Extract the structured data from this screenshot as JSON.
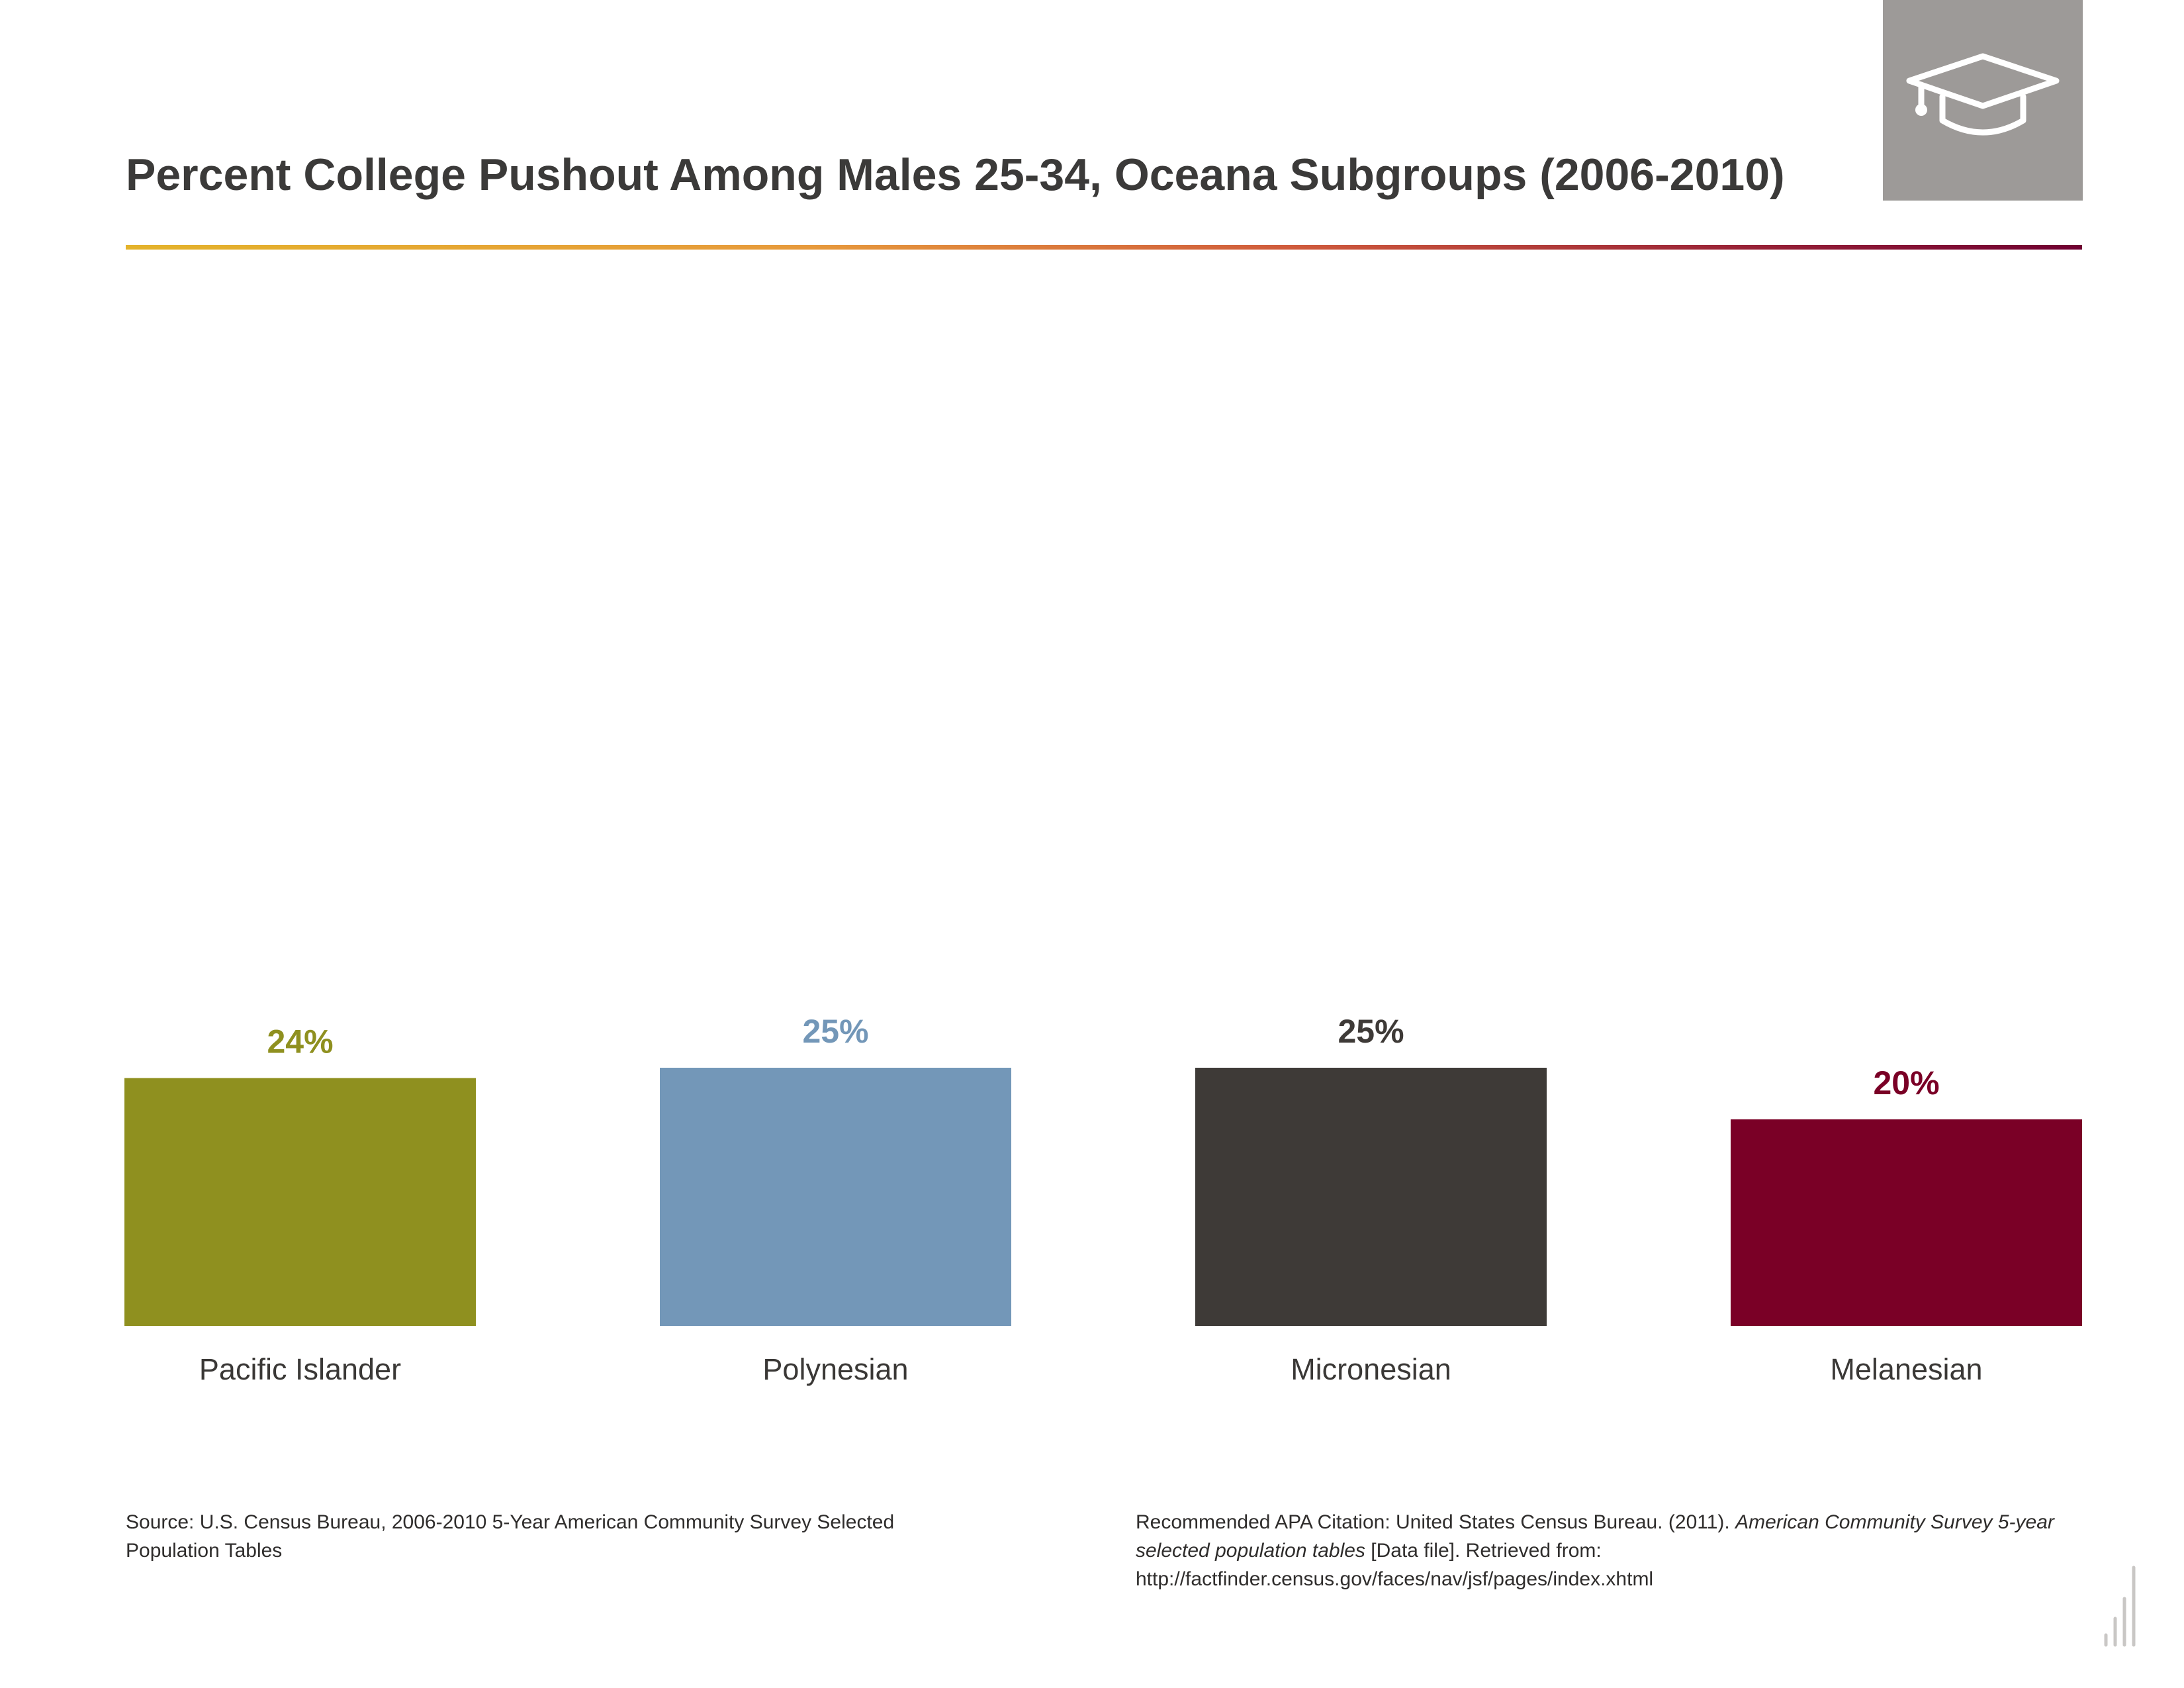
{
  "header": {
    "title": "Percent College Pushout Among Males 25-34, Oceana Subgroups (2006-2010)",
    "icon": "graduation-cap-icon"
  },
  "chart_data": {
    "type": "bar",
    "title": "Percent College Pushout Among Males 25-34, Oceana Subgroups (2006-2010)",
    "categories": [
      "Pacific Islander",
      "Polynesian",
      "Micronesian",
      "Melanesian"
    ],
    "values": [
      24,
      25,
      25,
      20
    ],
    "value_labels": [
      "24%",
      "25%",
      "25%",
      "20%"
    ],
    "colors": [
      "#8f901f",
      "#7397b8",
      "#3e3a37",
      "#7a0026"
    ],
    "xlabel": "",
    "ylabel": "",
    "ylim": [
      0,
      100
    ],
    "grid": false,
    "legend": "none"
  },
  "footer": {
    "source": "Source: U.S. Census Bureau, 2006-2010 5-Year American Community Survey Selected Population Tables",
    "citation_prefix": "Recommended APA Citation: United States Census Bureau. (2011). ",
    "citation_title": "American Community Survey 5-year selected population tables",
    "citation_suffix": " [Data file]. Retrieved from: http://factfinder.census.gov/faces/nav/jsf/pages/index.xhtml"
  },
  "colors": {
    "title_text": "#3b3a39",
    "icon_tile": "#9d9a98",
    "rule_start": "#e4b32b",
    "rule_end": "#700032"
  }
}
